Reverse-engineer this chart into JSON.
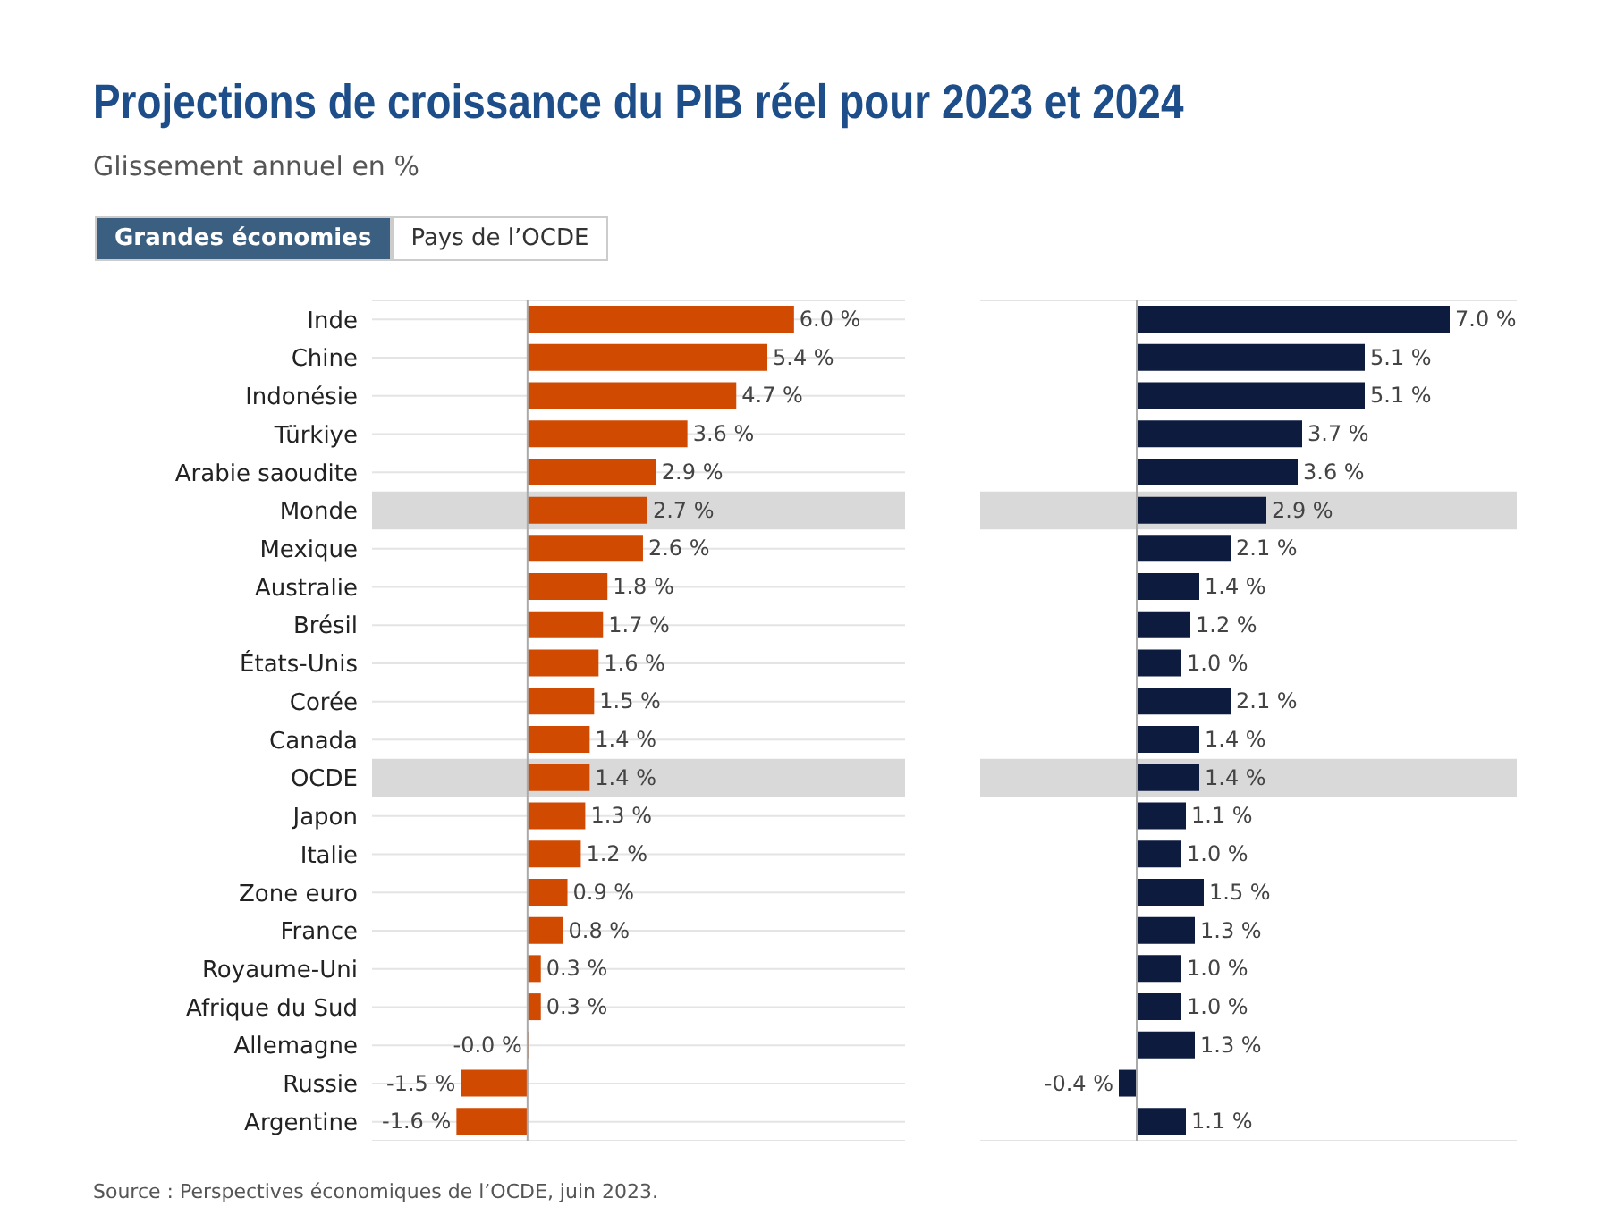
{
  "chart_data": [
    {
      "type": "bar",
      "orientation": "horizontal",
      "title": "Projections de croissance du PIB réel pour 2023 et 2024",
      "subtitle": "Glissement annuel en %",
      "annotations": [
        "Grandes économies",
        "Pays de l’OCDE"
      ],
      "categories": [
        "Inde",
        "Chine",
        "Indonésie",
        "Türkiye",
        "Arabie saoudite",
        "Monde",
        "Mexique",
        "Australie",
        "Brésil",
        "États-Unis",
        "Corée",
        "Canada",
        "OCDE",
        "Japon",
        "Italie",
        "Zone euro",
        "France",
        "Royaume-Uni",
        "Afrique du Sud",
        "Allemagne",
        "Russie",
        "Argentine"
      ],
      "series": [
        {
          "color": "#d04a02",
          "values": [
            6.0,
            5.4,
            4.7,
            3.6,
            2.9,
            2.7,
            2.6,
            1.8,
            1.7,
            1.6,
            1.5,
            1.4,
            1.4,
            1.3,
            1.2,
            0.9,
            0.8,
            0.3,
            0.3,
            -0.0,
            -1.5,
            -1.6
          ],
          "value_labels": [
            "6.0 %",
            "5.4 %",
            "4.7 %",
            "3.6 %",
            "2.9 %",
            "2.7 %",
            "2.6 %",
            "1.8 %",
            "1.7 %",
            "1.6 %",
            "1.5 %",
            "1.4 %",
            "1.4 %",
            "1.3 %",
            "1.2 %",
            "0.9 %",
            "0.8 %",
            "0.3 %",
            "0.3 %",
            "-0.0 %",
            "-1.5 %",
            "-1.6 %"
          ]
        }
      ],
      "xlim": [
        -3.5,
        8.5
      ],
      "bands": [
        {
          "axis": "y",
          "from": "Monde",
          "to": "Monde",
          "color": "#d9d9d9"
        },
        {
          "axis": "y",
          "from": "OCDE",
          "to": "OCDE",
          "color": "#d9d9d9"
        }
      ],
      "grid": "y",
      "legend": false
    },
    {
      "type": "bar",
      "orientation": "horizontal",
      "annotations": [
        "Source : Perspectives économiques de l’OCDE, juin 2023."
      ],
      "categories": [
        "Inde",
        "Chine",
        "Indonésie",
        "Türkiye",
        "Arabie saoudite",
        "Monde",
        "Mexique",
        "Australie",
        "Brésil",
        "États-Unis",
        "Corée",
        "Canada",
        "OCDE",
        "Japon",
        "Italie",
        "Zone euro",
        "France",
        "Royaume-Uni",
        "Afrique du Sud",
        "Allemagne",
        "Russie",
        "Argentine"
      ],
      "series": [
        {
          "color": "#0d1b3e",
          "values": [
            7.0,
            5.1,
            5.1,
            3.7,
            3.6,
            2.9,
            2.1,
            1.4,
            1.2,
            1.0,
            2.1,
            1.4,
            1.4,
            1.1,
            1.0,
            1.5,
            1.3,
            1.0,
            1.0,
            1.3,
            -0.4,
            1.1
          ],
          "value_labels": [
            "7.0 %",
            "5.1 %",
            "5.1 %",
            "3.7 %",
            "3.6 %",
            "2.9 %",
            "2.1 %",
            "1.4 %",
            "1.2 %",
            "1.0 %",
            "2.1 %",
            "1.4 %",
            "1.4 %",
            "1.1 %",
            "1.0 %",
            "1.5 %",
            "1.3 %",
            "1.0 %",
            "1.0 %",
            "1.3 %",
            "-0.4 %",
            "1.1 %"
          ]
        }
      ],
      "xlim": [
        -3.5,
        8.5
      ],
      "bands": [
        {
          "axis": "y",
          "from": "Monde",
          "to": "Monde",
          "color": "#d9d9d9"
        },
        {
          "axis": "y",
          "from": "OCDE",
          "to": "OCDE",
          "color": "#d9d9d9"
        }
      ],
      "grid": "y",
      "tick_labels": false,
      "legend": false
    }
  ]
}
